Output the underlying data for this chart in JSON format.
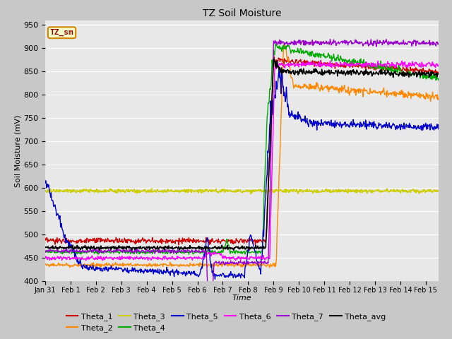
{
  "title": "TZ Soil Moisture",
  "xlabel": "Time",
  "ylabel": "Soil Moisture (mV)",
  "ylim": [
    400,
    960
  ],
  "yticks": [
    400,
    450,
    500,
    550,
    600,
    650,
    700,
    750,
    800,
    850,
    900,
    950
  ],
  "legend_label": "TZ_sm",
  "series": {
    "Theta_1": {
      "color": "#cc0000",
      "lw": 1.0
    },
    "Theta_2": {
      "color": "#ff8800",
      "lw": 1.0
    },
    "Theta_3": {
      "color": "#cccc00",
      "lw": 1.2
    },
    "Theta_4": {
      "color": "#00aa00",
      "lw": 1.0
    },
    "Theta_5": {
      "color": "#0000cc",
      "lw": 1.0
    },
    "Theta_6": {
      "color": "#ff00ff",
      "lw": 1.0
    },
    "Theta_7": {
      "color": "#9900cc",
      "lw": 1.0
    },
    "Theta_avg": {
      "color": "#000000",
      "lw": 1.2
    }
  }
}
